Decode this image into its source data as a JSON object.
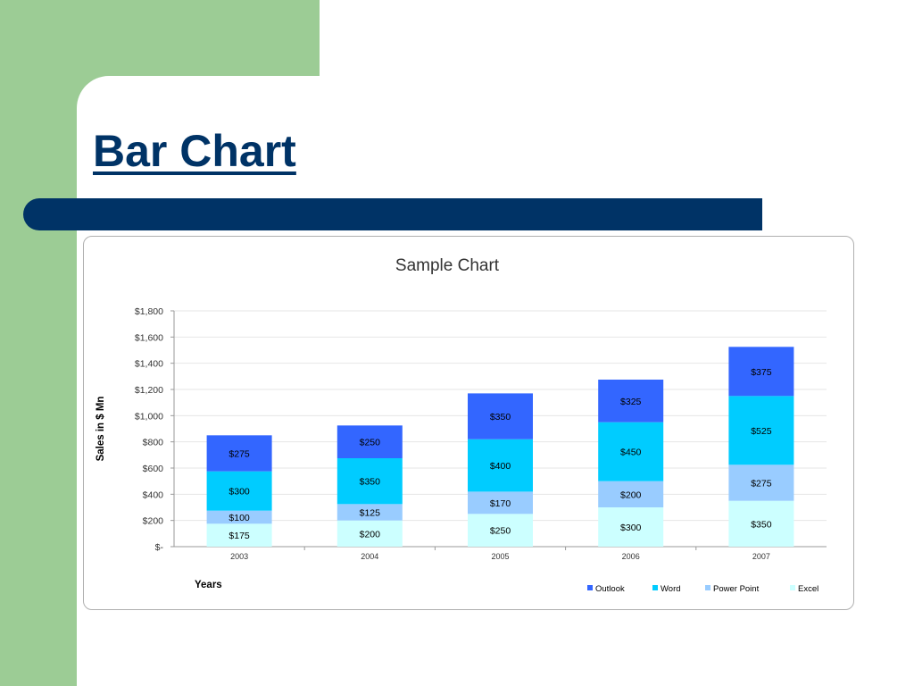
{
  "slide": {
    "title": "Bar Chart"
  },
  "colors": {
    "background_green": "#9ccc95",
    "navy": "#003366"
  },
  "chart_data": {
    "type": "bar",
    "stacked": true,
    "title": "Sample Chart",
    "xlabel": "Years",
    "ylabel": "Sales in $ Mn",
    "categories": [
      "2003",
      "2004",
      "2005",
      "2006",
      "2007"
    ],
    "ylim": [
      0,
      1800
    ],
    "yticks": [
      0,
      200,
      400,
      600,
      800,
      1000,
      1200,
      1400,
      1600,
      1800
    ],
    "ytick_labels": [
      "$-",
      "$200",
      "$400",
      "$600",
      "$800",
      "$1,000",
      "$1,200",
      "$1,400",
      "$1,600",
      "$1,800"
    ],
    "grid": true,
    "legend_position": "bottom-right",
    "series": [
      {
        "name": "Excel",
        "color": "#ccffff",
        "values": [
          175,
          200,
          250,
          300,
          350
        ],
        "labels": [
          "$175",
          "$200",
          "$250",
          "$300",
          "$350"
        ]
      },
      {
        "name": "Power Point",
        "color": "#99ccff",
        "values": [
          100,
          125,
          170,
          200,
          275
        ],
        "labels": [
          "$100",
          "$125",
          "$170",
          "$200",
          "$275"
        ]
      },
      {
        "name": "Word",
        "color": "#00ccff",
        "values": [
          300,
          350,
          400,
          450,
          525
        ],
        "labels": [
          "$300",
          "$350",
          "$400",
          "$450",
          "$525"
        ]
      },
      {
        "name": "Outlook",
        "color": "#3366ff",
        "values": [
          275,
          250,
          350,
          325,
          375
        ],
        "labels": [
          "$275",
          "$250",
          "$350",
          "$325",
          "$375"
        ]
      }
    ],
    "legend_order": [
      "Outlook",
      "Word",
      "Power Point",
      "Excel"
    ]
  }
}
